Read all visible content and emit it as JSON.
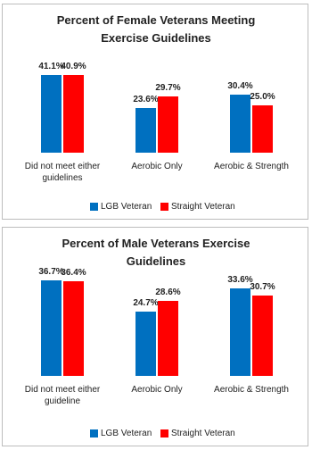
{
  "chart_data": [
    {
      "type": "bar",
      "title": "Percent of Female Veterans Meeting Exercise Guidelines",
      "categories": [
        "Did not meet either guidelines",
        "Aerobic Only",
        "Aerobic & Strength"
      ],
      "series": [
        {
          "name": "LGB Veteran",
          "color": "#0070c0",
          "values": [
            41.1,
            23.6,
            30.4
          ],
          "value_labels": [
            "41.1%",
            "23.6%",
            "30.4%"
          ]
        },
        {
          "name": "Straight Veteran",
          "color": "#ff0000",
          "values": [
            40.9,
            29.7,
            25.0
          ],
          "value_labels": [
            "40.9%",
            "29.7%",
            "25.0%"
          ]
        }
      ],
      "ylim": [
        0,
        55
      ]
    },
    {
      "type": "bar",
      "title": "Percent of Male Veterans Exercise Guidelines",
      "categories": [
        "Did not meet either guideline",
        "Aerobic Only",
        "Aerobic & Strength"
      ],
      "series": [
        {
          "name": "LGB Veteran",
          "color": "#0070c0",
          "values": [
            36.7,
            24.7,
            33.6
          ],
          "value_labels": [
            "36.7%",
            "24.7%",
            "33.6%"
          ]
        },
        {
          "name": "Straight Veteran",
          "color": "#ff0000",
          "values": [
            36.4,
            28.6,
            30.7
          ],
          "value_labels": [
            "36.4%",
            "28.6%",
            "30.7%"
          ]
        }
      ],
      "ylim": [
        0,
        40
      ]
    }
  ]
}
